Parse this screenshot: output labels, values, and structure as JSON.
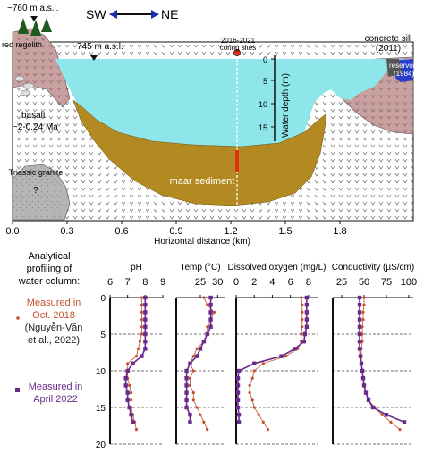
{
  "section": {
    "compass": {
      "left": "SW",
      "right": "NE"
    },
    "labels": {
      "summit_elev": "~760 m a.s.l.",
      "rim_elev": "745 m a.s.l.",
      "red_regolith": "red regolith",
      "basalt": "basalt",
      "basalt_age": "~2-0.24 Ma",
      "granite": "Triassic granite",
      "granite_q": "?",
      "coring_year": "2016-2021",
      "coring_sites": "coring sites",
      "concrete_sill": "concrete sill",
      "sill_year": "(2011)",
      "reservoir": "reservoir",
      "reservoir_year": "(1984)",
      "maar_sediment": "maar sediment",
      "water_depth_axis": "Water depth (m)",
      "x_axis_title": "Horizontal distance (km)"
    },
    "depth_ticks": [
      "0",
      "5",
      "10",
      "15"
    ],
    "x_ticks": [
      "0.0",
      "0.3",
      "0.6",
      "0.9",
      "1.2",
      "1.5",
      "1.8"
    ],
    "colors": {
      "water": "#8fe6ea",
      "sediment": "#b38a22",
      "rock": "#c9a0a0",
      "basalt": "#ffffff",
      "granite": "#b5b5b5",
      "reservoir": "#2a3fc9",
      "core_line": "#e03010",
      "sill": "#555555"
    }
  },
  "profiles": {
    "intro": [
      "Analytical",
      "profiling of",
      "water column:"
    ],
    "legend": {
      "oct_2018": [
        "Measured in",
        "Oct. 2018",
        "(Nguyễn-Văn",
        "et al., 2022)"
      ],
      "apr_2022": [
        "Measured in",
        "April 2022"
      ]
    },
    "depth_ticks": [
      "0",
      "5",
      "10",
      "15",
      "20"
    ],
    "colors": {
      "oct_2018": "#c5502a",
      "apr_2022": "#6a2a8a"
    }
  },
  "chart_data": [
    {
      "type": "line",
      "title": "pH",
      "xlim": [
        6,
        9
      ],
      "xticks": [
        "6",
        "7",
        "8",
        "9"
      ],
      "ylim": [
        20,
        0
      ],
      "ylabel": "",
      "series": [
        {
          "name": "Oct. 2018",
          "points": [
            [
              7.8,
              0
            ],
            [
              7.8,
              1
            ],
            [
              7.8,
              2
            ],
            [
              7.8,
              3
            ],
            [
              7.8,
              4
            ],
            [
              7.8,
              5
            ],
            [
              7.7,
              6
            ],
            [
              7.6,
              7
            ],
            [
              7.5,
              8
            ],
            [
              7.0,
              9
            ],
            [
              7.0,
              10
            ],
            [
              7.0,
              11
            ],
            [
              7.1,
              12
            ],
            [
              7.2,
              13
            ],
            [
              7.2,
              14
            ],
            [
              7.2,
              15
            ],
            [
              7.3,
              16
            ],
            [
              7.4,
              17
            ],
            [
              7.5,
              18
            ]
          ]
        },
        {
          "name": "April 2022",
          "points": [
            [
              8.0,
              0
            ],
            [
              8.0,
              1
            ],
            [
              8.0,
              2
            ],
            [
              8.0,
              3
            ],
            [
              8.0,
              4
            ],
            [
              8.0,
              5
            ],
            [
              8.0,
              6
            ],
            [
              8.0,
              7
            ],
            [
              7.8,
              8
            ],
            [
              7.3,
              9
            ],
            [
              7.0,
              10
            ],
            [
              6.9,
              11
            ],
            [
              6.9,
              12
            ],
            [
              7.0,
              13
            ],
            [
              7.0,
              14
            ],
            [
              7.1,
              15
            ],
            [
              7.2,
              16
            ],
            [
              7.3,
              17
            ]
          ]
        }
      ]
    },
    {
      "type": "line",
      "title": "Temp (°C)",
      "xlim": [
        18,
        32
      ],
      "xticks": [
        "25",
        "30"
      ],
      "ylim": [
        20,
        0
      ],
      "ylabel": "",
      "series": [
        {
          "name": "Oct. 2018",
          "points": [
            [
              26,
              0
            ],
            [
              27,
              1
            ],
            [
              29,
              2
            ],
            [
              28,
              3
            ],
            [
              27,
              4
            ],
            [
              27,
              5
            ],
            [
              26,
              6
            ],
            [
              24,
              7
            ],
            [
              23,
              8
            ],
            [
              22,
              9
            ],
            [
              23,
              10
            ],
            [
              22,
              11
            ],
            [
              22,
              12
            ],
            [
              23,
              13
            ],
            [
              23,
              14
            ],
            [
              24,
              15
            ],
            [
              25,
              16
            ],
            [
              26,
              17
            ],
            [
              27,
              18
            ]
          ]
        },
        {
          "name": "April 2022",
          "points": [
            [
              28,
              0
            ],
            [
              28,
              1
            ],
            [
              28,
              2
            ],
            [
              28,
              3
            ],
            [
              28,
              4
            ],
            [
              27,
              5
            ],
            [
              26,
              6
            ],
            [
              25,
              7
            ],
            [
              24,
              8
            ],
            [
              22,
              9
            ],
            [
              21,
              10
            ],
            [
              21,
              11
            ],
            [
              21,
              12
            ],
            [
              21,
              13
            ],
            [
              21,
              14
            ],
            [
              21,
              15
            ],
            [
              22,
              16
            ],
            [
              22,
              17
            ]
          ]
        }
      ]
    },
    {
      "type": "line",
      "title": "Dissolved oxygen (mg/L)",
      "xlim": [
        0,
        9
      ],
      "xticks": [
        "0",
        "2",
        "4",
        "6",
        "8"
      ],
      "ylim": [
        20,
        0
      ],
      "ylabel": "",
      "series": [
        {
          "name": "Oct. 2018",
          "points": [
            [
              7.2,
              0
            ],
            [
              7.3,
              1
            ],
            [
              7.3,
              2
            ],
            [
              7.3,
              3
            ],
            [
              7.3,
              4
            ],
            [
              7.2,
              5
            ],
            [
              7.2,
              6
            ],
            [
              6.8,
              7
            ],
            [
              5.5,
              8
            ],
            [
              3.0,
              9
            ],
            [
              2.0,
              10
            ],
            [
              1.8,
              11
            ],
            [
              1.5,
              12
            ],
            [
              1.5,
              13
            ],
            [
              1.8,
              14
            ],
            [
              2.0,
              15
            ],
            [
              2.5,
              16
            ],
            [
              3.0,
              17
            ],
            [
              3.5,
              18
            ]
          ]
        },
        {
          "name": "April 2022",
          "points": [
            [
              7.8,
              0
            ],
            [
              7.8,
              1
            ],
            [
              7.8,
              2
            ],
            [
              7.8,
              3
            ],
            [
              7.8,
              4
            ],
            [
              7.6,
              5
            ],
            [
              7.5,
              6
            ],
            [
              6.5,
              7
            ],
            [
              5.0,
              8
            ],
            [
              2.0,
              9
            ],
            [
              0.3,
              10
            ],
            [
              0.2,
              11
            ],
            [
              0.2,
              12
            ],
            [
              0.2,
              13
            ],
            [
              0.2,
              14
            ],
            [
              0.2,
              15
            ],
            [
              0.3,
              16
            ],
            [
              0.3,
              17
            ]
          ]
        }
      ]
    },
    {
      "type": "line",
      "title": "Conductivity (µS/cm)",
      "xlim": [
        15,
        105
      ],
      "xticks": [
        "25",
        "50",
        "75",
        "100"
      ],
      "ylim": [
        20,
        0
      ],
      "ylabel": "",
      "series": [
        {
          "name": "Oct. 2018",
          "points": [
            [
              50,
              0
            ],
            [
              50,
              1
            ],
            [
              49,
              2
            ],
            [
              49,
              3
            ],
            [
              48,
              4
            ],
            [
              48,
              5
            ],
            [
              48,
              6
            ],
            [
              47,
              7
            ],
            [
              47,
              8
            ],
            [
              47,
              9
            ],
            [
              48,
              10
            ],
            [
              49,
              11
            ],
            [
              50,
              12
            ],
            [
              52,
              13
            ],
            [
              55,
              14
            ],
            [
              62,
              15
            ],
            [
              70,
              16
            ],
            [
              80,
              17
            ],
            [
              90,
              18
            ]
          ]
        },
        {
          "name": "April 2022",
          "points": [
            [
              45,
              0
            ],
            [
              45,
              1
            ],
            [
              45,
              2
            ],
            [
              45,
              3
            ],
            [
              45,
              4
            ],
            [
              45,
              5
            ],
            [
              45,
              6
            ],
            [
              45,
              7
            ],
            [
              46,
              8
            ],
            [
              47,
              9
            ],
            [
              48,
              10
            ],
            [
              49,
              11
            ],
            [
              50,
              12
            ],
            [
              52,
              13
            ],
            [
              55,
              14
            ],
            [
              60,
              15
            ],
            [
              75,
              16
            ],
            [
              95,
              17
            ]
          ]
        }
      ]
    }
  ]
}
